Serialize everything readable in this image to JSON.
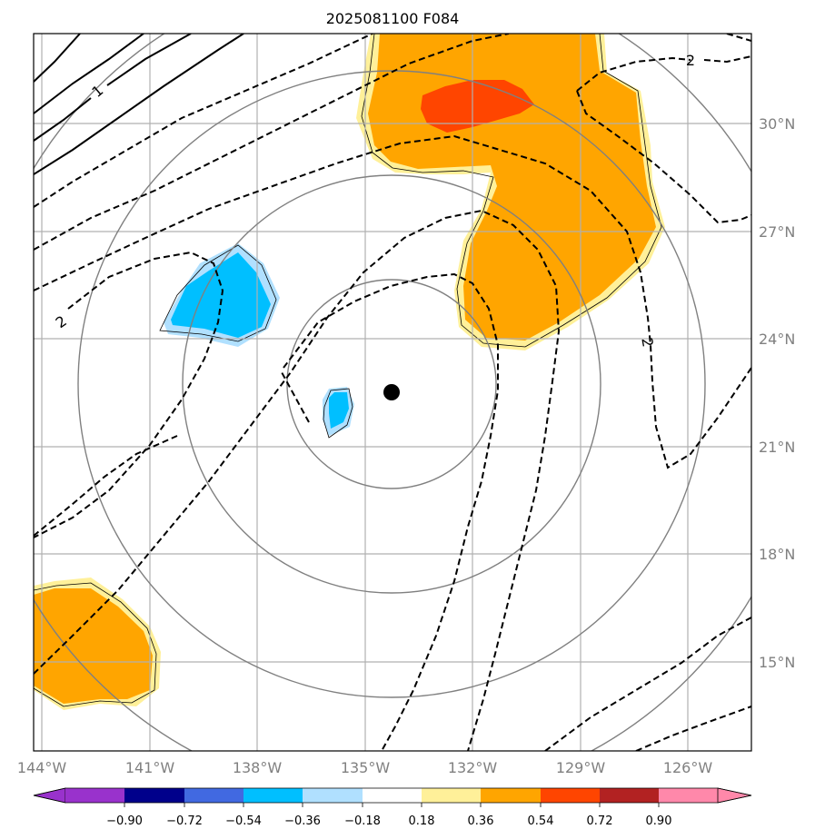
{
  "map": {
    "title": "2025081100 F084",
    "lon_ticks": [
      "144°W",
      "141°W",
      "138°W",
      "135°W",
      "132°W",
      "129°W",
      "126°W"
    ],
    "lat_ticks": [
      "30°N",
      "27°N",
      "24°N",
      "21°N",
      "18°N",
      "15°N"
    ],
    "center_marker": "storm-center",
    "contour_labels": [
      "1",
      "2",
      "2",
      "2"
    ],
    "colors": {
      "positive_light": "#fff099",
      "positive_mid": "#ffa500",
      "positive_strong": "#ff4500",
      "negative_light": "#b0e0ff",
      "negative_mid": "#00bfff",
      "ring": "#808080",
      "grid": "#b0b0b0"
    }
  },
  "colorbar": {
    "levels": [
      "−0.90",
      "−0.72",
      "−0.54",
      "−0.36",
      "−0.18",
      "0.18",
      "0.36",
      "0.54",
      "0.72",
      "0.90"
    ],
    "colors": [
      "#9932cc",
      "#00008b",
      "#4169e1",
      "#00bfff",
      "#b0e0ff",
      "#ffffff",
      "#fff099",
      "#ffa500",
      "#ff4500",
      "#b22222",
      "#ff88aa"
    ]
  }
}
